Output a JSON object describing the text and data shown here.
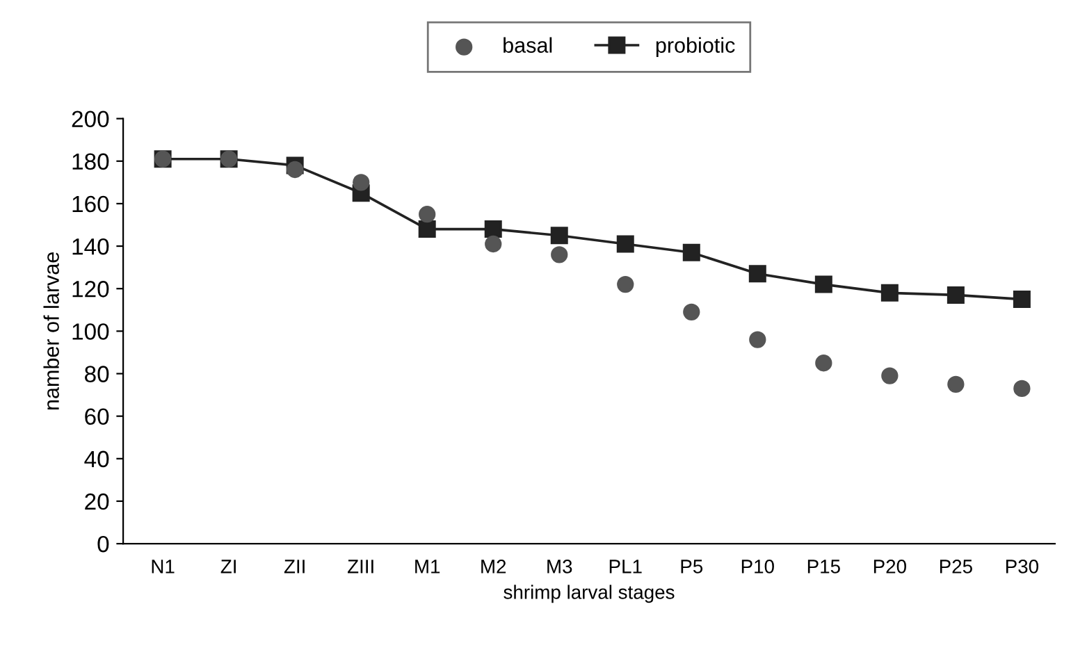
{
  "chart_data": {
    "type": "line",
    "xlabel": "shrimp larval stages",
    "ylabel": "namber of larvae",
    "categories": [
      "N1",
      "ZI",
      "ZII",
      "ZIII",
      "M1",
      "M2",
      "M3",
      "PL1",
      "P5",
      "P10",
      "P15",
      "P20",
      "P25",
      "P30"
    ],
    "series": [
      {
        "name": "basal",
        "type": "scatter",
        "marker": "circle",
        "color": "#555555",
        "values": [
          181,
          181,
          176,
          170,
          155,
          141,
          136,
          122,
          109,
          96,
          85,
          79,
          75,
          73
        ]
      },
      {
        "name": "probiotic",
        "marker": "square",
        "color": "#222222",
        "values": [
          181,
          181,
          178,
          165,
          148,
          148,
          145,
          141,
          137,
          127,
          122,
          118,
          117,
          115
        ]
      }
    ],
    "ylim": [
      0,
      200
    ],
    "yticks": [
      0,
      20,
      40,
      60,
      80,
      100,
      120,
      140,
      160,
      180,
      200
    ],
    "grid": false,
    "legend": "top"
  }
}
